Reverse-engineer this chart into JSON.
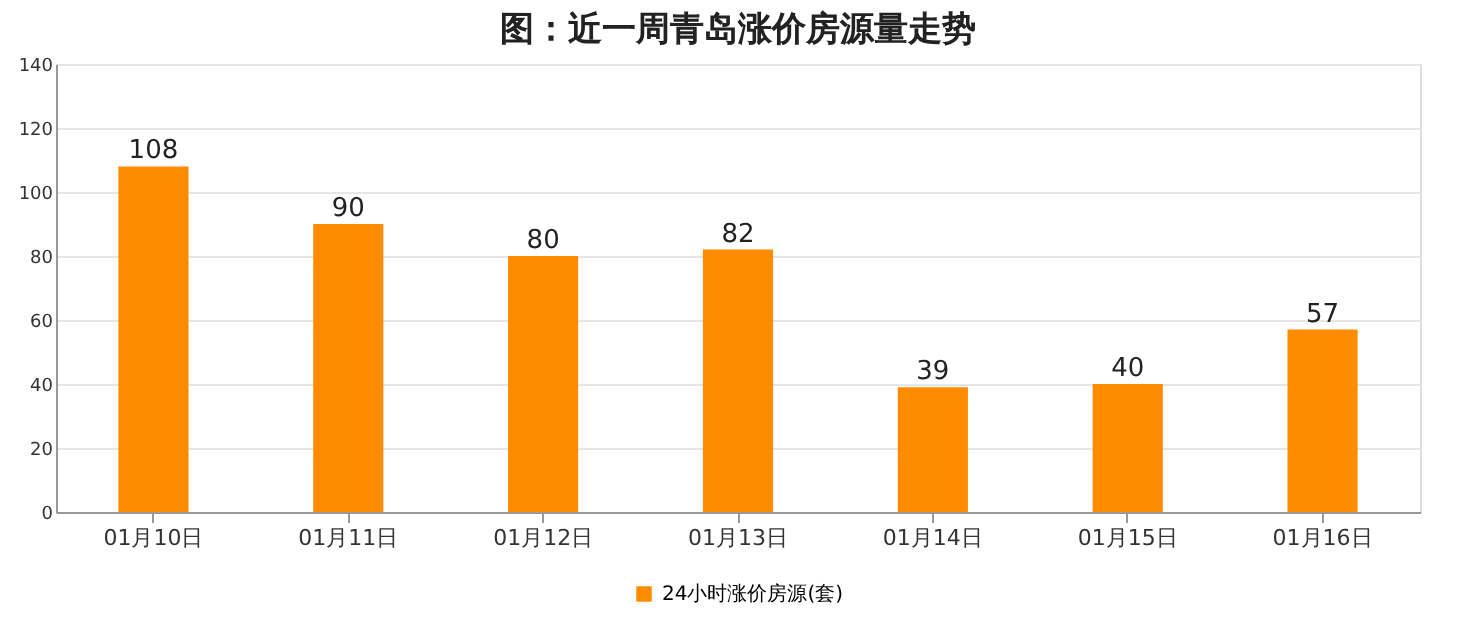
{
  "chart_data": {
    "type": "bar",
    "title": "图：近一周青岛涨价房源量走势",
    "categories": [
      "01月10日",
      "01月11日",
      "01月12日",
      "01月13日",
      "01月14日",
      "01月15日",
      "01月16日"
    ],
    "series": [
      {
        "name": "24小时涨价房源(套)",
        "color": "#ff8c00",
        "values": [
          108,
          90,
          80,
          82,
          39,
          40,
          57
        ]
      }
    ],
    "ylim": [
      0,
      140
    ],
    "yticks": [
      0,
      20,
      40,
      60,
      80,
      100,
      120,
      140
    ],
    "grid": "y",
    "legend": "bottom",
    "data_labels": true
  }
}
